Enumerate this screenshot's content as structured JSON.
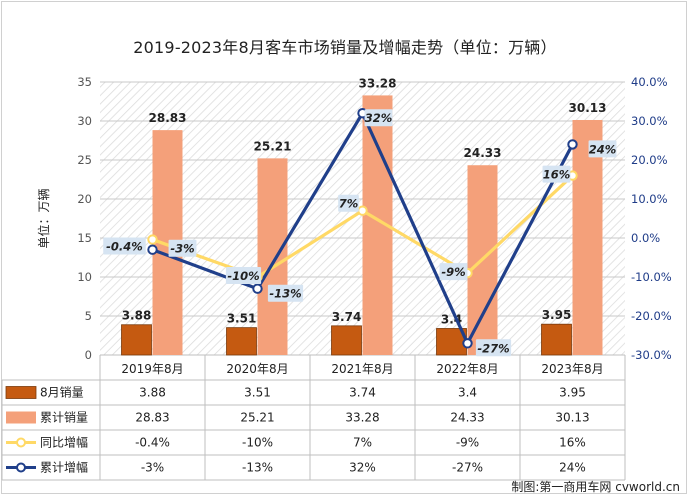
{
  "chart_data": {
    "type": "bar+line",
    "title": "2019-2023年8月客车市场销量及增幅走势（单位：万辆）",
    "ylabel": "单位：万辆",
    "categories": [
      "2019年8月",
      "2020年8月",
      "2021年8月",
      "2022年8月",
      "2023年8月"
    ],
    "ylim": [
      0,
      35
    ],
    "yticks": [
      "0",
      "5",
      "10",
      "15",
      "20",
      "25",
      "30",
      "35"
    ],
    "y2lim": [
      -30,
      40
    ],
    "y2ticks": [
      "-30.0%",
      "-20.0%",
      "-10.0%",
      "0.0%",
      "10.0%",
      "20.0%",
      "30.0%",
      "40.0%"
    ],
    "grid": true,
    "bar_series": [
      {
        "name": "8月销量",
        "values": [
          3.88,
          3.51,
          3.74,
          3.4,
          3.95
        ],
        "labels": [
          "3.88",
          "3.51",
          "3.74",
          "3.4",
          "3.95"
        ],
        "color": "#c55a11"
      },
      {
        "name": "累计销量",
        "values": [
          28.83,
          25.21,
          33.28,
          24.33,
          30.13
        ],
        "labels": [
          "28.83",
          "25.21",
          "33.28",
          "24.33",
          "30.13"
        ],
        "color": "#f4a07a"
      }
    ],
    "line_series": [
      {
        "name": "同比增幅",
        "values": [
          -0.4,
          -10,
          7,
          -9,
          16
        ],
        "labels": [
          "-0.4%",
          "-10%",
          "7%",
          "-9%",
          "16%"
        ],
        "color": "#ffd966"
      },
      {
        "name": "累计增幅",
        "values": [
          -3,
          -13,
          32,
          -27,
          24
        ],
        "labels": [
          "-3%",
          "-13%",
          "32%",
          "-27%",
          "24%"
        ],
        "color": "#203f8a"
      }
    ]
  },
  "credit": "制图:第一商用车网 cvworld.cn"
}
